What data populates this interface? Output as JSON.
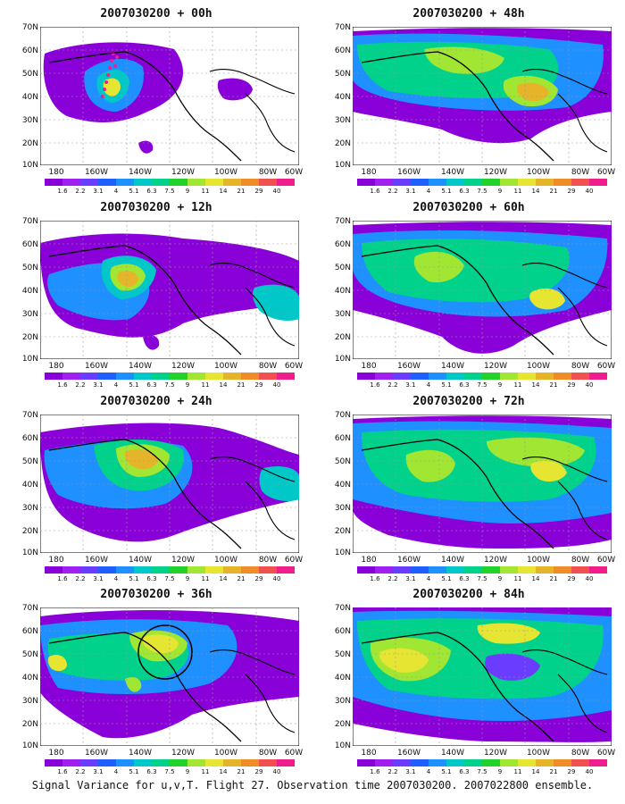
{
  "panels": [
    {
      "title": "2007030200 + 00h",
      "lead": "00h"
    },
    {
      "title": "2007030200 + 12h",
      "lead": "12h"
    },
    {
      "title": "2007030200 + 24h",
      "lead": "24h"
    },
    {
      "title": "2007030200 + 36h",
      "lead": "36h"
    },
    {
      "title": "2007030200 + 48h",
      "lead": "48h"
    },
    {
      "title": "2007030200 + 60h",
      "lead": "60h"
    },
    {
      "title": "2007030200 + 72h",
      "lead": "72h"
    },
    {
      "title": "2007030200 + 84h",
      "lead": "84h"
    }
  ],
  "lat_labels": [
    "70N",
    "60N",
    "50N",
    "40N",
    "30N",
    "20N",
    "10N"
  ],
  "lon_labels": [
    "180",
    "160W",
    "140W",
    "120W",
    "100W",
    "80W",
    "60W"
  ],
  "colorbar": {
    "labels": [
      "1.6",
      "2.2",
      "3.1",
      "4",
      "5.1",
      "6.3",
      "7.5",
      "9",
      "11",
      "14",
      "21",
      "29",
      "40"
    ],
    "colors": [
      "#8a00d8",
      "#a020f0",
      "#6a3cff",
      "#1f5fff",
      "#1e90ff",
      "#00c8c8",
      "#00d28c",
      "#22d22a",
      "#a0e632",
      "#e6e632",
      "#e6b428",
      "#f08c28",
      "#f05050",
      "#f01e8c"
    ]
  },
  "caption": "Signal Variance for u,v,T. Flight 27. Observation time 2007030200. 2007022800 ensemble.",
  "legend": {
    "low": "#8a00d8",
    "mid": "#00c8c8",
    "high": "#e6e632"
  }
}
